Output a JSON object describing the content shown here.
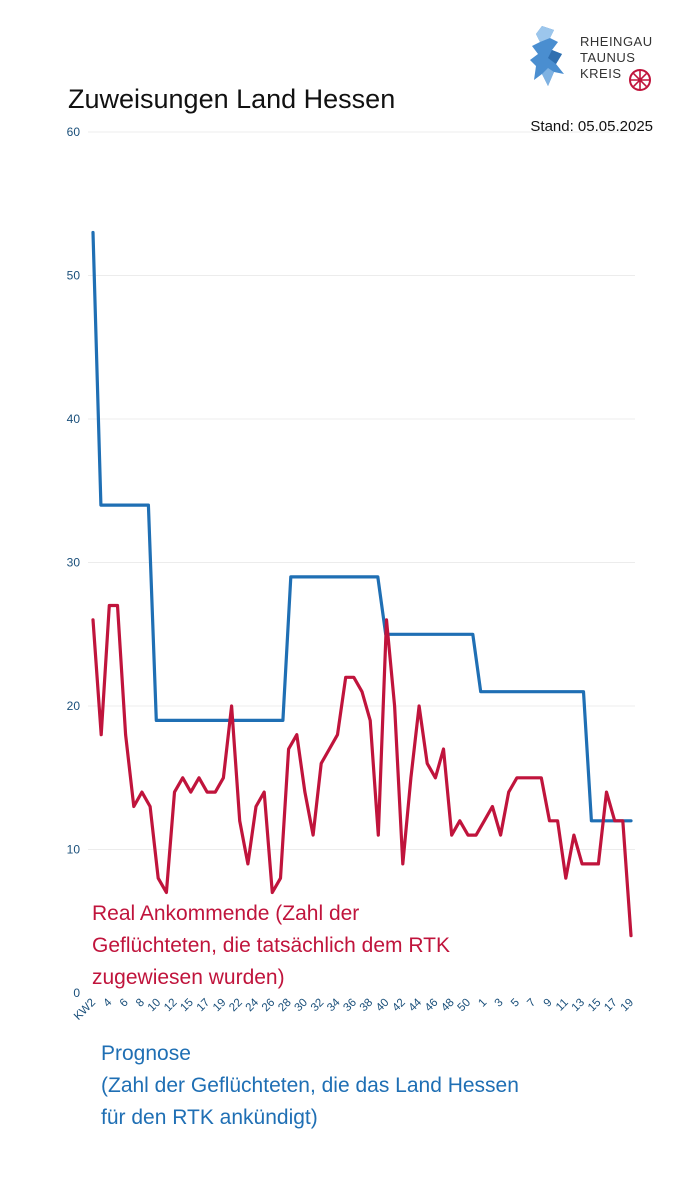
{
  "title": "Zuweisungen Land Hessen",
  "stand": "Stand: 05.05.2025",
  "logo": {
    "line1": "RHEINGAU",
    "line2": "TAUNUS",
    "line3": "KREIS",
    "icon": "lion-crest-icon",
    "emblem": "wheel-emblem-icon"
  },
  "labels": {
    "real": "Real Ankommende (Zahl der Geflüchteten, die tatsächlich dem RTK zugewiesen wurden)",
    "prognose_line1": "Prognose",
    "prognose_line2": "(Zahl der Geflüchteten, die das Land Hessen für den RTK ankündigt)"
  },
  "chart_data": {
    "type": "line",
    "ylim": [
      0,
      60
    ],
    "yticks": [
      0,
      10,
      20,
      30,
      40,
      50,
      60
    ],
    "x_tick_labels": [
      "KW2",
      "4",
      "6",
      "8",
      "10",
      "12",
      "15",
      "17",
      "19",
      "22",
      "24",
      "26",
      "28",
      "30",
      "32",
      "34",
      "36",
      "38",
      "40",
      "42",
      "44",
      "46",
      "48",
      "50",
      "1",
      "3",
      "5",
      "7",
      "9",
      "11",
      "13",
      "15",
      "17",
      "19"
    ],
    "grid": true,
    "colors": {
      "prognose": "#1f6fb4",
      "real": "#c0143c"
    },
    "series": [
      {
        "name": "Prognose",
        "values": [
          53,
          34,
          34,
          34,
          34,
          34,
          34,
          34,
          19,
          19,
          19,
          19,
          19,
          19,
          19,
          19,
          19,
          19,
          19,
          19,
          19,
          19,
          19,
          19,
          19,
          29,
          29,
          29,
          29,
          29,
          29,
          29,
          29,
          29,
          29,
          29,
          29,
          25,
          25,
          25,
          25,
          25,
          25,
          25,
          25,
          25,
          25,
          25,
          25,
          21,
          21,
          21,
          21,
          21,
          21,
          21,
          21,
          21,
          21,
          21,
          21,
          21,
          21,
          12,
          12,
          12,
          12,
          12,
          12
        ]
      },
      {
        "name": "Real Ankommende",
        "values": [
          26,
          18,
          27,
          27,
          18,
          13,
          14,
          13,
          8,
          7,
          14,
          15,
          14,
          15,
          14,
          14,
          15,
          20,
          12,
          9,
          13,
          14,
          7,
          8,
          17,
          18,
          14,
          11,
          16,
          17,
          18,
          22,
          22,
          21,
          19,
          11,
          26,
          20,
          9,
          15,
          20,
          16,
          15,
          17,
          11,
          12,
          11,
          11,
          12,
          13,
          11,
          14,
          15,
          15,
          15,
          15,
          12,
          12,
          8,
          11,
          9,
          9,
          9,
          14,
          12,
          12,
          4
        ]
      }
    ]
  }
}
